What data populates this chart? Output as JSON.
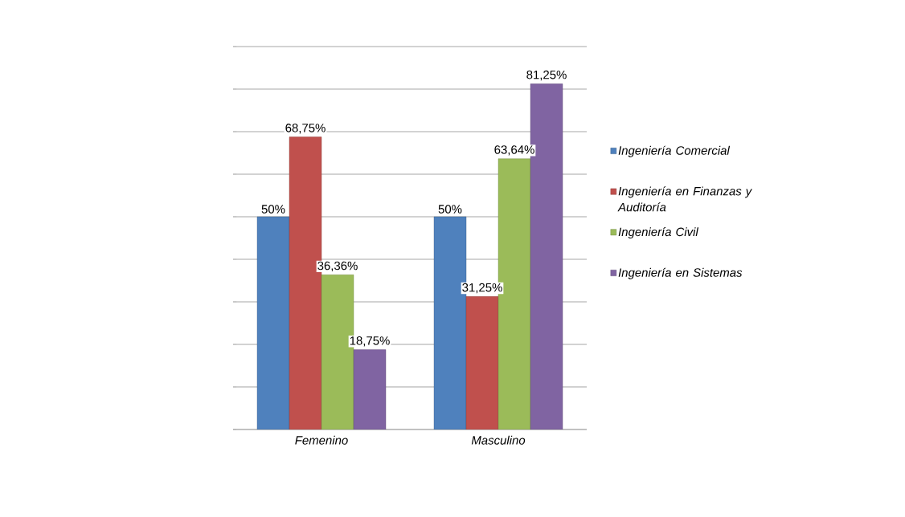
{
  "chart_data": {
    "type": "bar",
    "categories": [
      "Femenino",
      "Masculino"
    ],
    "series": [
      {
        "name": "Ingeniería Comercial",
        "color": "#4f81bd",
        "values": [
          50,
          50
        ],
        "value_labels": [
          "50%",
          "50%"
        ]
      },
      {
        "name": "Ingeniería en Finanzas y Auditoría",
        "color": "#c0504d",
        "values": [
          68.75,
          31.25
        ],
        "value_labels": [
          "68,75%",
          "31,25%"
        ]
      },
      {
        "name": "Ingeniería Civil",
        "color": "#9bbb59",
        "values": [
          36.36,
          63.64
        ],
        "value_labels": [
          "36,36%",
          "63,64%"
        ]
      },
      {
        "name": "Ingeniería en Sistemas",
        "color": "#8064a2",
        "values": [
          18.75,
          81.25
        ],
        "value_labels": [
          "18,75%",
          "81,25%"
        ]
      }
    ],
    "ylim": [
      0,
      90
    ],
    "yticks": [
      {
        "value": 0,
        "label": null
      },
      {
        "value": 10,
        "label": null
      },
      {
        "value": 20,
        "label": null
      },
      {
        "value": 30,
        "label": null
      },
      {
        "value": 40,
        "label": null
      },
      {
        "value": 50,
        "label": null
      },
      {
        "value": 60,
        "label": null
      },
      {
        "value": 70,
        "label": null
      },
      {
        "value": 80,
        "label": null
      },
      {
        "value": 90,
        "label": null
      }
    ],
    "tick_labels": "x",
    "grid": "y",
    "legend": "right"
  }
}
